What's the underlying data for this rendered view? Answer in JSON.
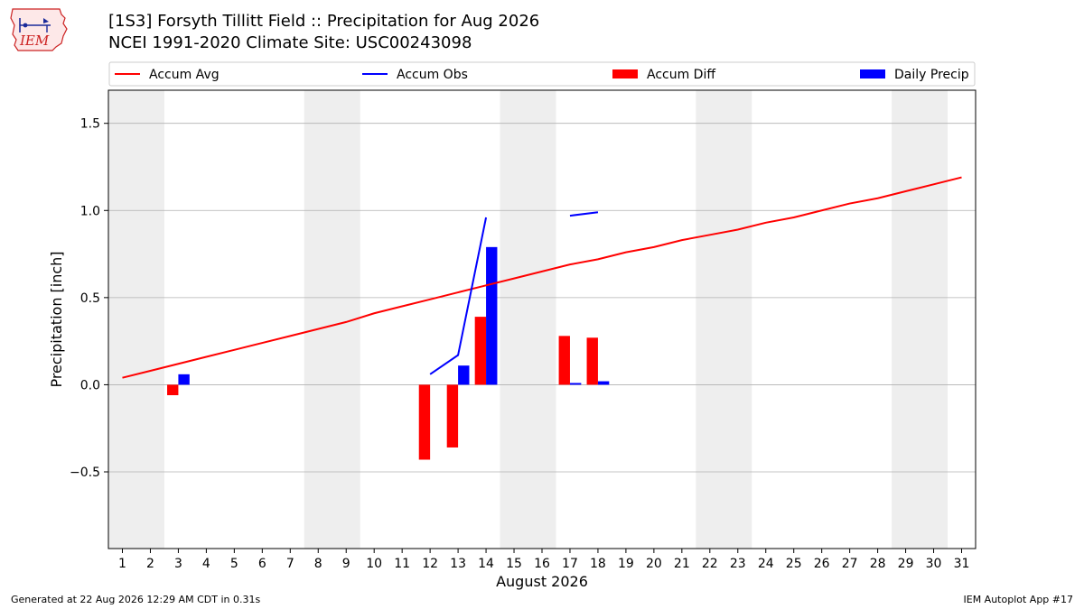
{
  "header": {
    "title_line1": "[1S3] Forsyth Tillitt Field :: Precipitation for Aug 2026",
    "title_line2": "NCEI 1991-2020 Climate Site: USC00243098"
  },
  "logo": {
    "text": "IEM"
  },
  "footer": {
    "generated": "Generated at 22 Aug 2026 12:29 AM CDT in 0.31s",
    "app": "IEM Autoplot App #17"
  },
  "colors": {
    "accum_avg": "#ff0000",
    "accum_obs": "#0000ff",
    "accum_diff": "#ff0000",
    "daily_precip": "#0000ff",
    "weekend_shade": "#eeeeee",
    "grid": "#b0b0b0"
  },
  "chart_data": {
    "type": "bar",
    "xlabel": "August 2026",
    "ylabel": "Precipitation [inch]",
    "xlim": [
      0.5,
      31.5
    ],
    "ylim": [
      -0.94,
      1.69
    ],
    "yticks": [
      -0.5,
      0.0,
      0.5,
      1.0,
      1.5
    ],
    "ytick_labels": [
      "−0.5",
      "0.0",
      "0.5",
      "1.0",
      "1.5"
    ],
    "x": [
      1,
      2,
      3,
      4,
      5,
      6,
      7,
      8,
      9,
      10,
      11,
      12,
      13,
      14,
      15,
      16,
      17,
      18,
      19,
      20,
      21,
      22,
      23,
      24,
      25,
      26,
      27,
      28,
      29,
      30,
      31
    ],
    "legend_position": "top",
    "grid": "horizontal",
    "shaded_days": [
      [
        1,
        2
      ],
      [
        8,
        9
      ],
      [
        15,
        16
      ],
      [
        22,
        23
      ],
      [
        29,
        30
      ]
    ],
    "series": [
      {
        "name": "Accum Avg",
        "kind": "line",
        "x": [
          1,
          2,
          3,
          4,
          5,
          6,
          7,
          8,
          9,
          10,
          11,
          12,
          13,
          14,
          15,
          16,
          17,
          18,
          19,
          20,
          21,
          22,
          23,
          24,
          25,
          26,
          27,
          28,
          29,
          30,
          31
        ],
        "values": [
          0.04,
          0.08,
          0.12,
          0.16,
          0.2,
          0.24,
          0.28,
          0.32,
          0.36,
          0.41,
          0.45,
          0.49,
          0.53,
          0.57,
          0.61,
          0.65,
          0.69,
          0.72,
          0.76,
          0.79,
          0.83,
          0.86,
          0.89,
          0.93,
          0.96,
          1.0,
          1.04,
          1.07,
          1.11,
          1.15,
          1.19
        ]
      },
      {
        "name": "Accum Obs",
        "kind": "line",
        "segments": [
          {
            "x": [
              12,
              13,
              14
            ],
            "values": [
              0.06,
              0.17,
              0.96
            ]
          },
          {
            "x": [
              17,
              18
            ],
            "values": [
              0.97,
              0.99
            ]
          }
        ]
      },
      {
        "name": "Accum Diff",
        "kind": "bar",
        "x": [
          3,
          12,
          13,
          14,
          17,
          18
        ],
        "values": [
          -0.06,
          -0.43,
          -0.36,
          0.39,
          0.28,
          0.27
        ]
      },
      {
        "name": "Daily Precip",
        "kind": "bar",
        "x": [
          3,
          13,
          14,
          17,
          18
        ],
        "values": [
          0.06,
          0.11,
          0.79,
          0.01,
          0.02
        ]
      }
    ]
  }
}
